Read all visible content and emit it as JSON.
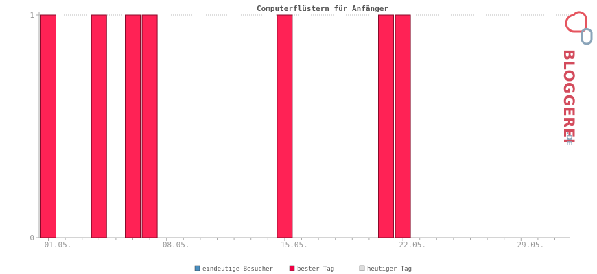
{
  "chart_data": {
    "type": "bar",
    "title": "Computerflüstern für Anfänger",
    "x_tick_labels": [
      "01.05.",
      "08.05.",
      "15.05.",
      "22.05.",
      "29.05."
    ],
    "y_tick_labels": [
      "0",
      "1"
    ],
    "ylim": [
      0,
      1
    ],
    "days_in_view": 32,
    "series": [
      {
        "name": "bester Tag",
        "color": "#ff2255",
        "values": [
          1,
          0,
          0,
          1,
          0,
          1,
          1,
          0,
          0,
          0,
          0,
          0,
          0,
          0,
          1,
          0,
          0,
          0,
          0,
          0,
          1,
          1,
          0,
          0,
          0,
          0,
          0,
          0,
          0,
          0,
          0,
          0
        ]
      }
    ],
    "legend": [
      {
        "label": "eindeutige Besucher",
        "color": "#4a8fc0"
      },
      {
        "label": "bester Tag",
        "color": "#ee0044"
      },
      {
        "label": "heutiger Tag",
        "color": "#dddddd"
      }
    ],
    "legend_position": "bottom",
    "grid": "dotted top line"
  },
  "logo": {
    "text_main": "BLOGGEREI",
    "text_suffix": ".DE",
    "icon": "bloggerei-logo-icon",
    "colors": {
      "red": "#e5555f",
      "blue": "#8aa4b9",
      "text": "#d34b5c"
    }
  }
}
